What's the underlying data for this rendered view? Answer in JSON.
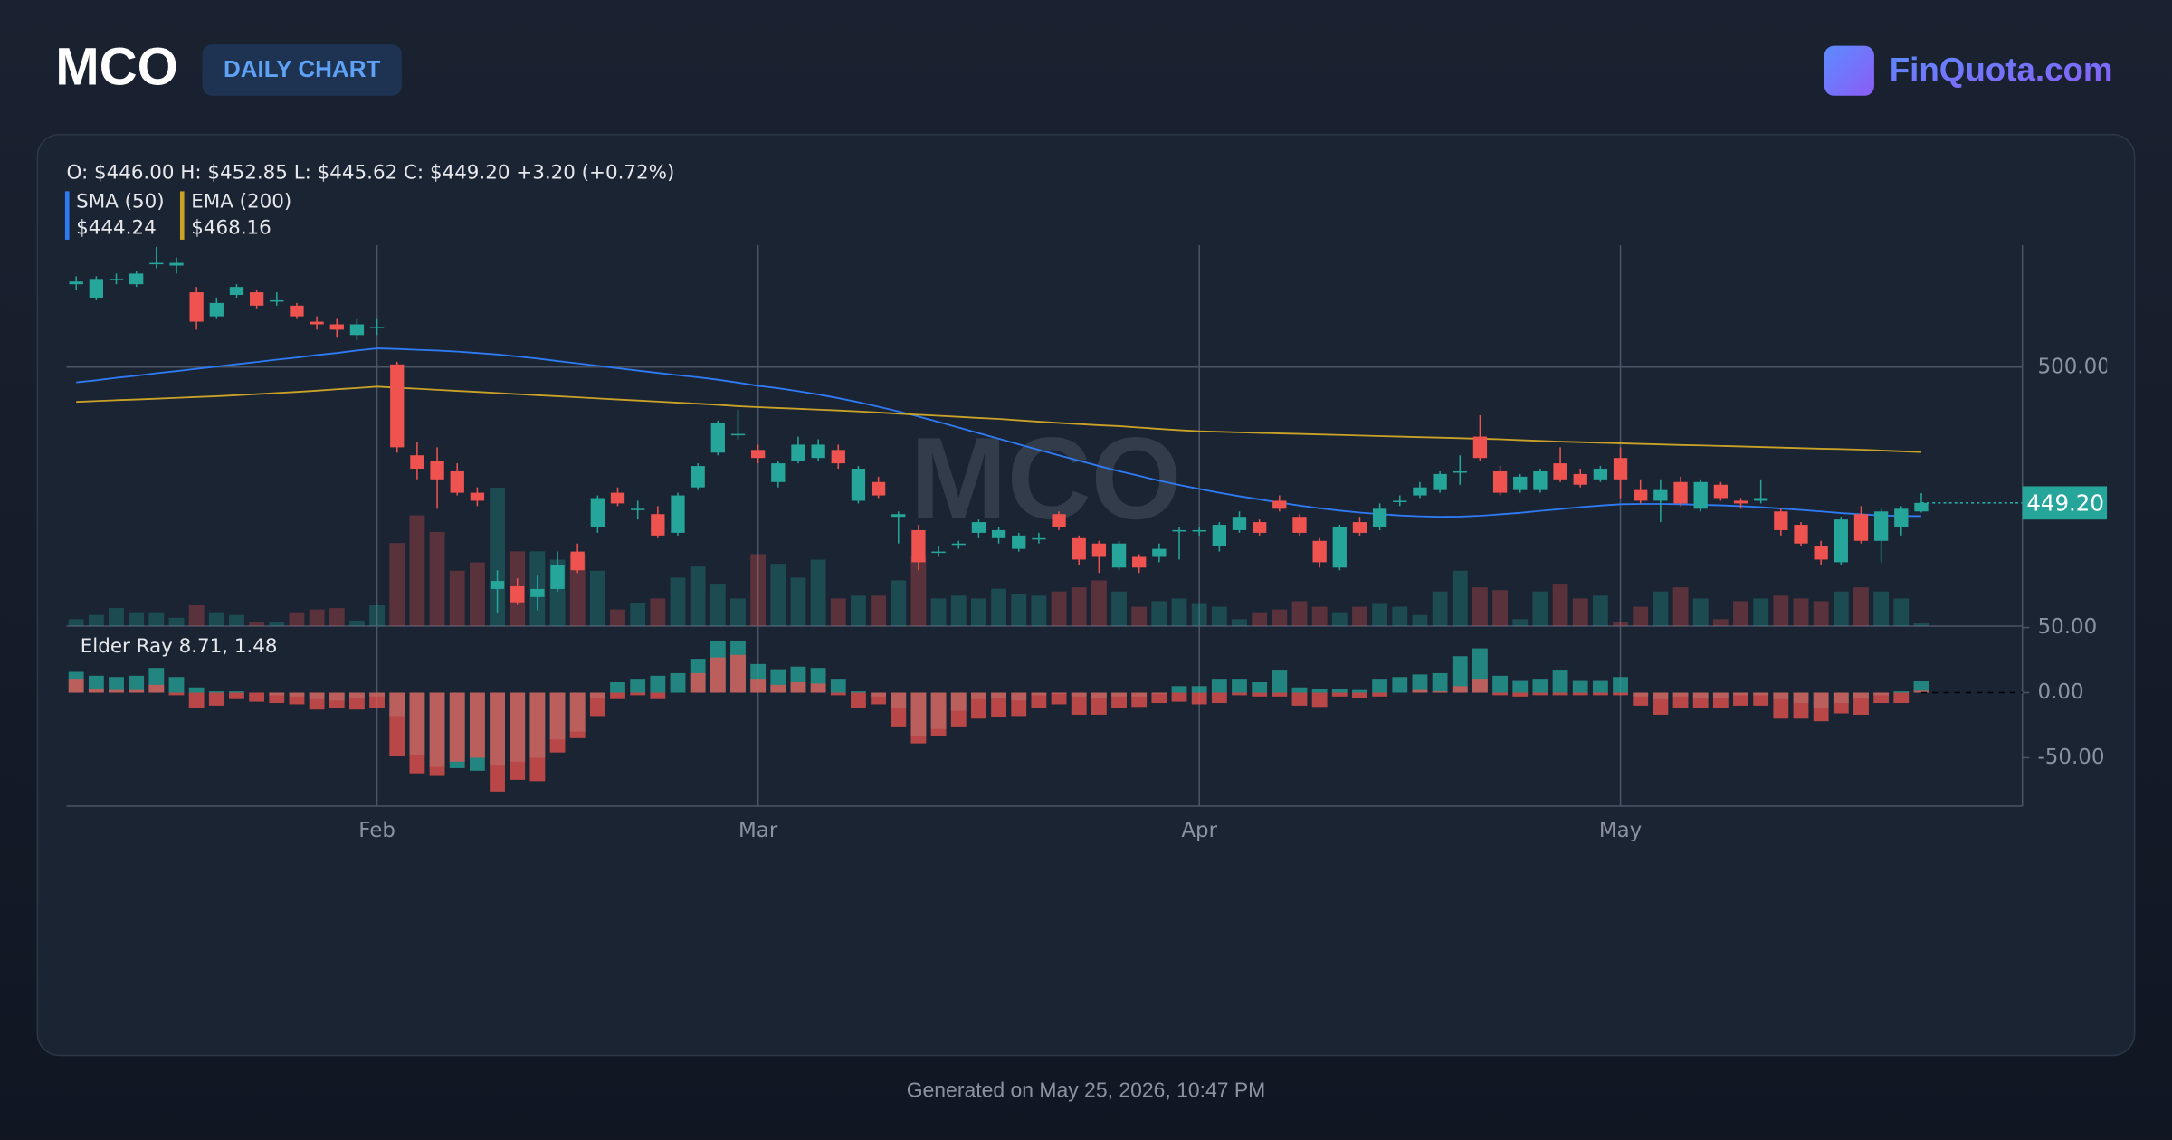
{
  "header": {
    "symbol": "MCO",
    "badge": "DAILY CHART",
    "brand": "FinQuota.com"
  },
  "footer": "Generated on May 25, 2026, 10:47 PM",
  "chart_data": {
    "type": "candlestick",
    "watermark": "MCO",
    "legend_ohlc": "O: $446.00 H: $452.85 L: $445.62 C: $449.20 +3.20 (+0.72%)",
    "up_color": "#26a69a",
    "down_color": "#ef5350",
    "categories": [
      null,
      null,
      null,
      null,
      null,
      null,
      null,
      null,
      null,
      null,
      null,
      null,
      null,
      null,
      null,
      "Feb",
      null,
      null,
      null,
      null,
      null,
      null,
      null,
      null,
      null,
      null,
      null,
      null,
      null,
      null,
      null,
      null,
      null,
      null,
      "Mar",
      null,
      null,
      null,
      null,
      null,
      null,
      null,
      null,
      null,
      null,
      null,
      null,
      null,
      null,
      null,
      null,
      null,
      null,
      null,
      null,
      null,
      "Apr",
      null,
      null,
      null,
      null,
      null,
      null,
      null,
      null,
      null,
      null,
      null,
      null,
      null,
      null,
      null,
      null,
      null,
      null,
      null,
      null,
      "May",
      null,
      null,
      null,
      null,
      null,
      null,
      null,
      null,
      null,
      null,
      null,
      null,
      null,
      null,
      null
    ],
    "ylim": [
      403.1,
      545.6
    ],
    "yticks": [
      {
        "value": 500,
        "label": "500.00"
      }
    ],
    "last_price": {
      "value": 449.2,
      "label": "449.20"
    },
    "ohlc": [
      [
        531,
        534,
        529,
        532
      ],
      [
        526,
        534,
        525,
        533
      ],
      [
        533,
        535,
        531,
        533
      ],
      [
        531,
        536,
        530,
        535
      ],
      [
        539,
        545,
        537,
        539
      ],
      [
        538,
        541,
        535,
        539
      ],
      [
        528,
        530,
        514,
        517
      ],
      [
        519,
        526,
        518,
        524
      ],
      [
        527,
        531,
        526,
        530
      ],
      [
        528,
        529,
        522,
        523
      ],
      [
        525,
        528,
        523,
        525
      ],
      [
        523,
        524,
        518,
        519
      ],
      [
        517,
        519,
        514,
        516
      ],
      [
        516,
        518,
        511,
        514
      ],
      [
        512,
        518,
        510,
        516
      ],
      [
        515,
        518,
        512,
        515
      ],
      [
        501,
        502,
        468,
        470
      ],
      [
        467,
        472,
        458,
        462
      ],
      [
        465,
        470,
        447,
        458
      ],
      [
        461,
        464,
        452,
        453
      ],
      [
        453,
        455,
        448,
        450
      ],
      [
        417,
        424,
        408,
        420
      ],
      [
        418,
        421,
        411,
        412
      ],
      [
        414,
        422,
        409,
        417
      ],
      [
        417,
        431,
        416,
        426
      ],
      [
        431,
        434,
        423,
        424
      ],
      [
        440,
        452,
        438,
        451
      ],
      [
        453,
        455,
        448,
        449
      ],
      [
        447,
        450,
        443,
        447
      ],
      [
        445,
        448,
        436,
        437
      ],
      [
        438,
        453,
        437,
        452
      ],
      [
        455,
        464,
        454,
        463
      ],
      [
        468,
        480,
        467,
        479
      ],
      [
        475,
        484,
        473,
        475
      ],
      [
        469,
        471,
        464,
        466
      ],
      [
        457,
        465,
        455,
        464
      ],
      [
        465,
        474,
        464,
        471
      ],
      [
        466,
        473,
        465,
        471
      ],
      [
        469,
        471,
        462,
        464
      ],
      [
        450,
        463,
        449,
        462
      ],
      [
        457,
        459,
        451,
        452
      ],
      [
        444,
        446,
        434,
        445
      ],
      [
        439,
        441,
        424,
        427
      ],
      [
        431,
        433,
        429,
        431
      ],
      [
        434,
        435,
        432,
        434
      ],
      [
        438,
        443,
        436,
        442
      ],
      [
        436,
        440,
        434,
        439
      ],
      [
        432,
        438,
        431,
        437
      ],
      [
        436,
        438,
        434,
        436
      ],
      [
        445,
        446,
        439,
        440
      ],
      [
        436,
        437,
        426,
        428
      ],
      [
        434,
        435,
        423,
        429
      ],
      [
        425,
        435,
        424,
        434
      ],
      [
        429,
        430,
        423,
        425
      ],
      [
        429,
        434,
        427,
        432
      ],
      [
        439,
        440,
        428,
        439
      ],
      [
        439,
        440,
        437,
        439
      ],
      [
        433,
        442,
        431,
        441
      ],
      [
        439,
        446,
        438,
        444
      ],
      [
        442,
        443,
        437,
        438
      ],
      [
        450,
        452,
        446,
        447
      ],
      [
        444,
        445,
        437,
        438
      ],
      [
        435,
        436,
        425,
        427
      ],
      [
        425,
        441,
        424,
        440
      ],
      [
        442,
        444,
        437,
        438
      ],
      [
        440,
        449,
        439,
        447
      ],
      [
        450,
        452,
        448,
        450
      ],
      [
        452,
        457,
        451,
        455
      ],
      [
        454,
        461,
        453,
        460
      ],
      [
        461,
        467,
        456,
        461
      ],
      [
        474,
        482,
        465,
        466
      ],
      [
        461,
        463,
        452,
        453
      ],
      [
        454,
        460,
        453,
        459
      ],
      [
        454,
        462,
        453,
        461
      ],
      [
        464,
        470,
        457,
        458
      ],
      [
        460,
        462,
        455,
        456
      ],
      [
        458,
        463,
        457,
        462
      ],
      [
        466,
        470,
        451,
        458
      ],
      [
        454,
        458,
        449,
        450
      ],
      [
        450,
        458,
        442,
        454
      ],
      [
        457,
        459,
        448,
        449
      ],
      [
        447,
        458,
        446,
        457
      ],
      [
        456,
        457,
        450,
        451
      ],
      [
        450,
        451,
        447,
        449
      ],
      [
        450,
        458,
        449,
        451
      ],
      [
        446,
        447,
        437,
        439
      ],
      [
        441,
        442,
        433,
        434
      ],
      [
        433,
        435,
        426,
        428
      ],
      [
        427,
        444,
        426,
        443
      ],
      [
        445,
        448,
        434,
        435
      ],
      [
        435,
        447,
        427,
        446
      ],
      [
        440,
        448,
        437,
        447
      ],
      [
        446,
        452.85,
        445.62,
        449.2
      ]
    ],
    "volume": [
      100,
      160,
      260,
      200,
      200,
      120,
      300,
      200,
      160,
      60,
      60,
      200,
      240,
      260,
      80,
      300,
      1200,
      1600,
      1360,
      800,
      920,
      2000,
      1080,
      1080,
      960,
      1040,
      800,
      240,
      340,
      400,
      700,
      860,
      600,
      400,
      1040,
      900,
      700,
      960,
      400,
      440,
      440,
      660,
      1000,
      400,
      440,
      400,
      540,
      460,
      440,
      500,
      560,
      660,
      500,
      280,
      360,
      400,
      320,
      280,
      100,
      200,
      240,
      360,
      280,
      200,
      280,
      320,
      280,
      160,
      500,
      800,
      560,
      520,
      100,
      500,
      600,
      400,
      440,
      60,
      280,
      500,
      560,
      400,
      100,
      360,
      400,
      440,
      400,
      360,
      500,
      560,
      500,
      400,
      40
    ],
    "series": [
      {
        "name": "SMA (50)",
        "color": "#2f7bf5",
        "value_label": "$444.24",
        "values": [
          494.3,
          495.1,
          496.0,
          496.8,
          497.7,
          498.5,
          499.4,
          500.2,
          501.1,
          501.9,
          502.8,
          503.6,
          504.5,
          505.3,
          506.2,
          507.0,
          506.8,
          506.5,
          506.2,
          505.8,
          505.3,
          504.7,
          504.0,
          503.2,
          502.3,
          501.4,
          500.5,
          499.6,
          498.7,
          497.8,
          497.0,
          496.2,
          495.3,
          494.2,
          493.0,
          492.1,
          491.0,
          489.8,
          488.4,
          486.9,
          485.2,
          483.4,
          481.5,
          479.5,
          477.4,
          475.3,
          473.2,
          471.1,
          469.0,
          467.0,
          465.0,
          463.0,
          461.1,
          459.3,
          457.5,
          455.9,
          454.4,
          453.0,
          451.7,
          450.5,
          449.3,
          448.2,
          447.2,
          446.3,
          445.6,
          445.0,
          444.5,
          444.2,
          444.0,
          444.1,
          444.4,
          444.9,
          445.5,
          446.2,
          446.9,
          447.6,
          448.2,
          448.7,
          448.8,
          448.8,
          448.7,
          448.5,
          448.3,
          448.0,
          447.6,
          447.1,
          446.6,
          446.0,
          445.4,
          444.9,
          444.5,
          444.3,
          444.24
        ]
      },
      {
        "name": "EMA (200)",
        "color": "#c9a227",
        "value_label": "$468.16",
        "values": [
          487.0,
          487.3,
          487.6,
          487.9,
          488.2,
          488.5,
          488.8,
          489.1,
          489.5,
          489.9,
          490.3,
          490.7,
          491.2,
          491.7,
          492.2,
          492.7,
          492.3,
          491.9,
          491.5,
          491.1,
          490.7,
          490.3,
          489.9,
          489.5,
          489.1,
          488.7,
          488.3,
          487.9,
          487.5,
          487.1,
          486.7,
          486.3,
          485.9,
          485.4,
          485.0,
          484.7,
          484.4,
          484.1,
          483.8,
          483.4,
          483.0,
          482.6,
          482.2,
          481.8,
          481.4,
          481.0,
          480.6,
          480.1,
          479.6,
          479.1,
          478.7,
          478.3,
          477.9,
          477.4,
          476.9,
          476.4,
          476.0,
          475.8,
          475.6,
          475.4,
          475.2,
          475.0,
          474.8,
          474.6,
          474.4,
          474.2,
          474.0,
          473.8,
          473.6,
          473.4,
          473.2,
          473.0,
          472.7,
          472.4,
          472.1,
          471.9,
          471.7,
          471.5,
          471.3,
          471.1,
          470.9,
          470.7,
          470.5,
          470.3,
          470.1,
          469.9,
          469.7,
          469.5,
          469.3,
          469.1,
          468.8,
          468.5,
          468.16
        ]
      }
    ],
    "elder_ray": {
      "label": "Elder Ray 8.71, 1.48",
      "ylim": [
        -87.2,
        51.1
      ],
      "yticks": [
        {
          "value": 50,
          "label": "50.00"
        },
        {
          "value": 0,
          "label": "0.00"
        },
        {
          "value": -50,
          "label": "-50.00"
        }
      ],
      "bull_power": [
        16,
        13,
        12,
        13,
        19,
        12,
        4,
        1,
        1,
        0,
        -2,
        -3,
        -5,
        -6,
        -4,
        -3,
        -18,
        -48,
        -57,
        -58,
        -60,
        -56,
        -53,
        -50,
        -36,
        -30,
        -4,
        8,
        10,
        13,
        15,
        26,
        40,
        40,
        22,
        18,
        20,
        19,
        10,
        1,
        -3,
        -12,
        -33,
        -28,
        -14,
        -5,
        -4,
        -6,
        -2,
        -1,
        -3,
        -4,
        -3,
        -3,
        -1,
        5,
        5,
        10,
        10,
        8,
        17,
        4,
        3,
        3,
        2,
        10,
        12,
        14,
        15,
        28,
        34,
        13,
        9,
        10,
        17,
        9,
        9,
        12,
        -3,
        -5,
        -3,
        -4,
        -4,
        -2,
        -2,
        -5,
        -8,
        -12,
        -8,
        -4,
        -2,
        1,
        8.71
      ],
      "bear_power": [
        10,
        3,
        2,
        2,
        6,
        -2,
        -12,
        -10,
        -5,
        -7,
        -8,
        -9,
        -13,
        -12,
        -13,
        -12,
        -49,
        -62,
        -64,
        -53,
        -50,
        -76,
        -67,
        -68,
        -46,
        -35,
        -18,
        -5,
        -2,
        -5,
        0,
        15,
        27,
        29,
        10,
        6,
        8,
        7,
        -2,
        -12,
        -9,
        -26,
        -39,
        -33,
        -26,
        -20,
        -19,
        -18,
        -12,
        -9,
        -17,
        -17,
        -12,
        -11,
        -8,
        -7,
        -9,
        -8,
        -2,
        -3,
        -3,
        -10,
        -11,
        -3,
        -4,
        -3,
        0,
        2,
        1,
        5,
        10,
        -2,
        -3,
        -2,
        -2,
        -2,
        -2,
        -2,
        -10,
        -17,
        -12,
        -12,
        -12,
        -10,
        -10,
        -20,
        -20,
        -22,
        -16,
        -17,
        -8,
        -8,
        1.48
      ]
    }
  }
}
